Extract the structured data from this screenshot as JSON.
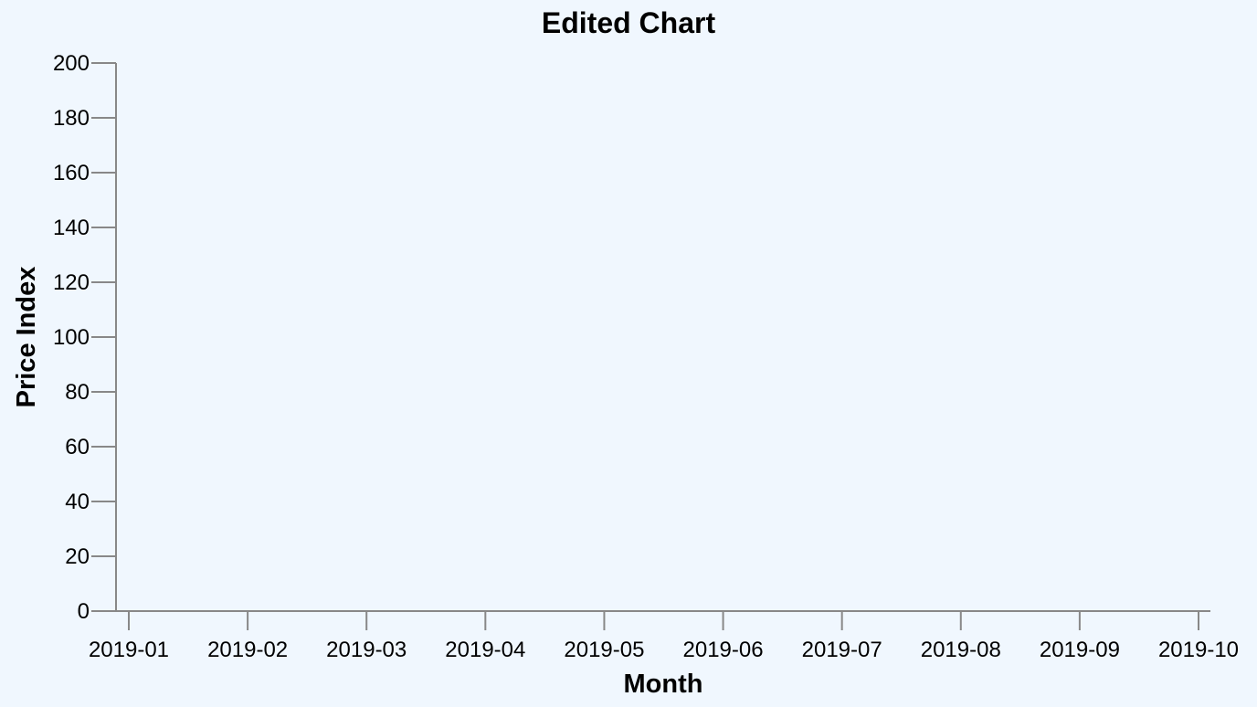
{
  "chart_data": {
    "type": "line",
    "title": "Edited Chart",
    "xlabel": "Month",
    "ylabel": "Price Index",
    "x_ticks": [
      "2019-01",
      "2019-02",
      "2019-03",
      "2019-04",
      "2019-05",
      "2019-06",
      "2019-07",
      "2019-08",
      "2019-09",
      "2019-10"
    ],
    "x_range": [
      "2019-01",
      "2019-10"
    ],
    "y_ticks": [
      0,
      20,
      40,
      60,
      80,
      100,
      120,
      140,
      160,
      180,
      200
    ],
    "ylim": [
      0,
      200
    ],
    "series": [],
    "grid": false,
    "legend": "none",
    "colors": {
      "background": "#f0f7fe",
      "axis": "#888888",
      "text": "#000000"
    }
  }
}
